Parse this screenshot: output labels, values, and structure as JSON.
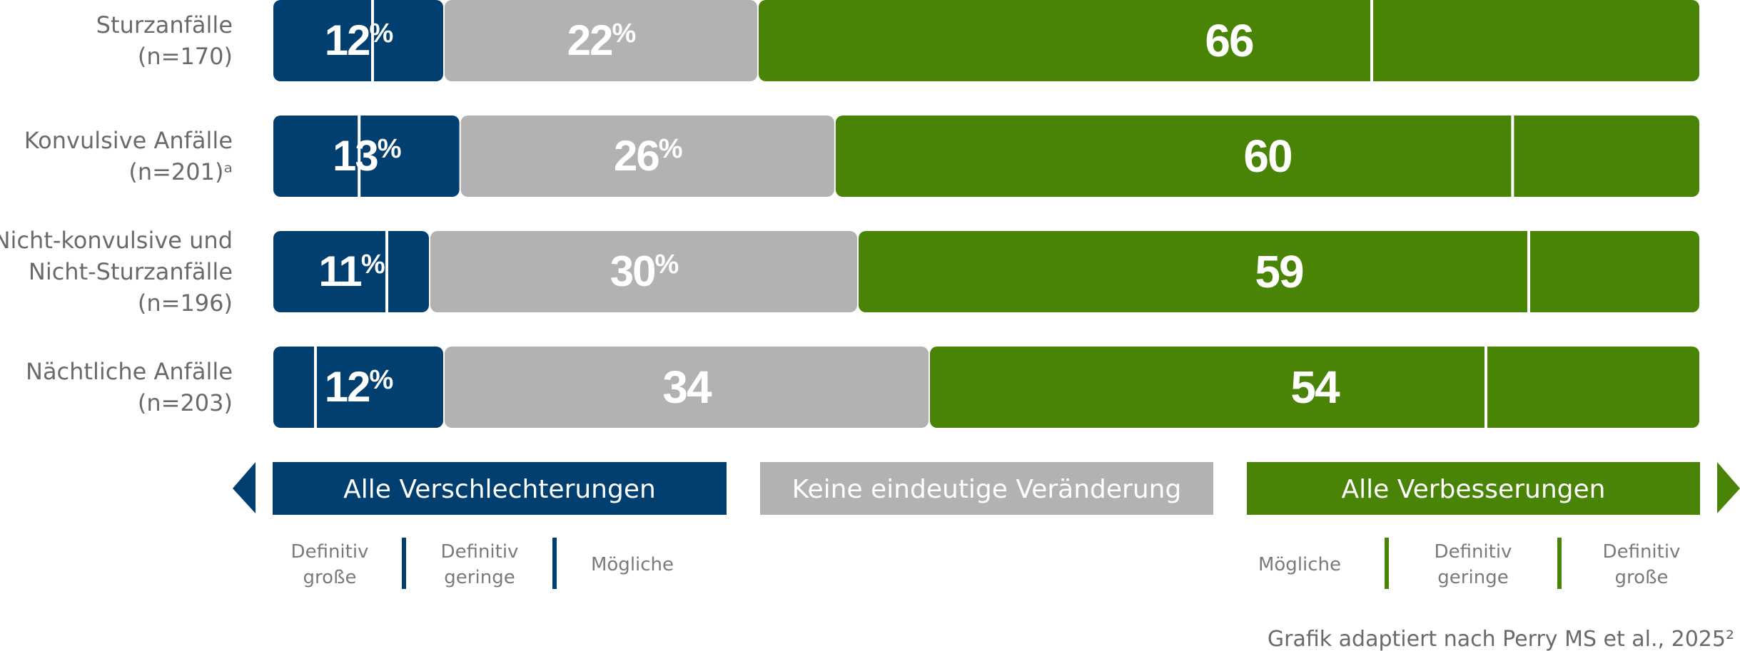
{
  "colors": {
    "worse": "#003f6f",
    "none": "#b2b2b2",
    "better": "#4a8406",
    "label": "#6a6a6a",
    "sublabel": "#7a7a7a",
    "value": "#ffffff"
  },
  "chart_data": {
    "type": "bar",
    "orientation": "horizontal",
    "stacked": true,
    "categories": [
      [
        "Sturzanfälle",
        "(n=170)"
      ],
      [
        "Konvulsive Anfälle",
        "(n=201)ᵃ"
      ],
      [
        "Nicht-konvulsive und",
        "Nicht-Sturzanfälle",
        "(n=196)"
      ],
      [
        "Nächtliche Anfälle",
        "(n=203)"
      ]
    ],
    "series": [
      {
        "name": "Alle Verschlechterungen",
        "values": [
          12,
          13,
          11,
          12
        ],
        "labels": [
          "12%",
          "13%",
          "11%",
          "12%"
        ],
        "divider": [
          7,
          6,
          8,
          3
        ]
      },
      {
        "name": "Keine eindeutige Veränderung",
        "values": [
          22,
          26,
          30,
          34
        ],
        "labels": [
          "22%",
          "26%",
          "30%",
          "34"
        ]
      },
      {
        "name": "Alle Verbesserungen",
        "values": [
          66,
          60,
          59,
          54
        ],
        "labels": [
          "66",
          "60",
          "59",
          "54"
        ],
        "divider": [
          43,
          47,
          47,
          39
        ]
      }
    ],
    "xlim": [
      0,
      100
    ],
    "legend": {
      "position": "bottom",
      "items": [
        {
          "label": "Alle Verschlechterungen",
          "key": "worse"
        },
        {
          "label": "Keine eindeutige Veränderung",
          "key": "none"
        },
        {
          "label": "Alle Verbesserungen",
          "key": "better"
        }
      ],
      "worse_sub": [
        [
          "Definitiv",
          "große"
        ],
        [
          "Definitiv",
          "geringe"
        ],
        [
          "Mögliche"
        ]
      ],
      "better_sub": [
        [
          "Mögliche"
        ],
        [
          "Definitiv",
          "geringe"
        ],
        [
          "Definitiv",
          "große"
        ]
      ]
    },
    "source": "Grafik adaptiert nach Perry MS et al., 2025²"
  }
}
